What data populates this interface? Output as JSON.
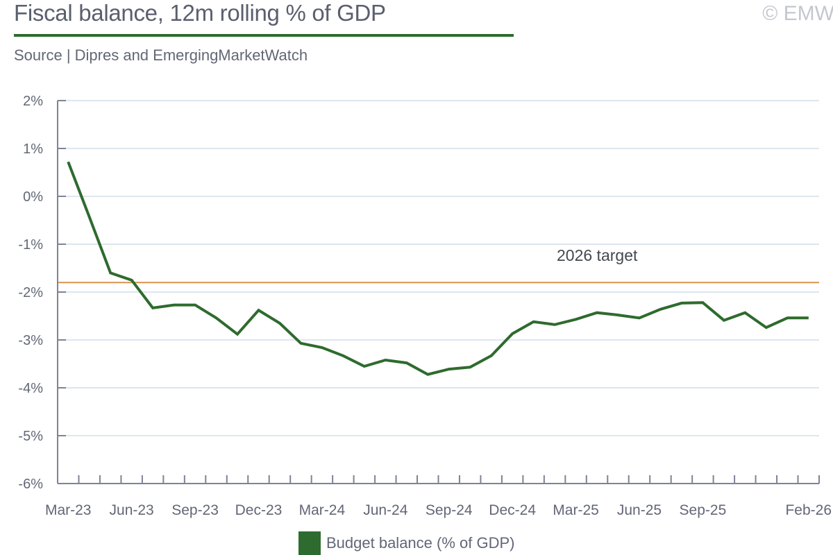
{
  "header": {
    "title": "Fiscal balance, 12m rolling % of GDP",
    "subtitle": "Source | Dipres and EmergingMarketWatch",
    "copyright": "© EMW"
  },
  "colors": {
    "series": "#2e6b2e",
    "target": "#d9944a",
    "grid": "#dde6f0",
    "axis": "#7d8396"
  },
  "chart_data": {
    "type": "line",
    "title": "Fiscal balance, 12m rolling % of GDP",
    "xlabel": "",
    "ylabel": "",
    "ylim": [
      -6,
      2
    ],
    "yticks": [
      2,
      1,
      0,
      -1,
      -2,
      -3,
      -4,
      -5,
      -6
    ],
    "ytick_labels": [
      "2%",
      "1%",
      "0%",
      "-1%",
      "-2%",
      "-3%",
      "-4%",
      "-5%",
      "-6%"
    ],
    "grid": true,
    "legend_position": "bottom",
    "categories": [
      "Mar-23",
      "Apr-23",
      "May-23",
      "Jun-23",
      "Jul-23",
      "Aug-23",
      "Sep-23",
      "Oct-23",
      "Nov-23",
      "Dec-23",
      "Jan-24",
      "Feb-24",
      "Mar-24",
      "Apr-24",
      "May-24",
      "Jun-24",
      "Jul-24",
      "Aug-24",
      "Sep-24",
      "Oct-24",
      "Nov-24",
      "Dec-24",
      "Jan-25",
      "Feb-25",
      "Mar-25",
      "Apr-25",
      "May-25",
      "Jun-25",
      "Jul-25",
      "Aug-25",
      "Sep-25",
      "Oct-25",
      "Nov-25",
      "Dec-25",
      "Jan-26",
      "Feb-26"
    ],
    "xtick_labels": [
      {
        "index": 0,
        "label": "Mar-23"
      },
      {
        "index": 3,
        "label": "Jun-23"
      },
      {
        "index": 6,
        "label": "Sep-23"
      },
      {
        "index": 9,
        "label": "Dec-23"
      },
      {
        "index": 12,
        "label": "Mar-24"
      },
      {
        "index": 15,
        "label": "Jun-24"
      },
      {
        "index": 18,
        "label": "Sep-24"
      },
      {
        "index": 21,
        "label": "Dec-24"
      },
      {
        "index": 24,
        "label": "Mar-25"
      },
      {
        "index": 27,
        "label": "Jun-25"
      },
      {
        "index": 30,
        "label": "Sep-25"
      },
      {
        "index": 35,
        "label": "Feb-26"
      }
    ],
    "series": [
      {
        "name": "Budget balance (% of GDP)",
        "values": [
          0.72,
          -0.43,
          -1.6,
          -1.75,
          -2.33,
          -2.27,
          -2.27,
          -2.54,
          -2.88,
          -2.38,
          -2.65,
          -3.07,
          -3.16,
          -3.33,
          -3.55,
          -3.42,
          -3.48,
          -3.72,
          -3.61,
          -3.57,
          -3.33,
          -2.87,
          -2.62,
          -2.68,
          -2.57,
          -2.43,
          -2.48,
          -2.54,
          -2.36,
          -2.23,
          -2.22,
          -2.59,
          -2.43,
          -2.74,
          -2.54,
          -2.54
        ]
      }
    ],
    "reference_lines": [
      {
        "name": "2026 target",
        "value": -1.8,
        "label": "2026 target"
      }
    ]
  },
  "legend": {
    "items": [
      {
        "label": "Budget balance (% of GDP)"
      }
    ]
  }
}
